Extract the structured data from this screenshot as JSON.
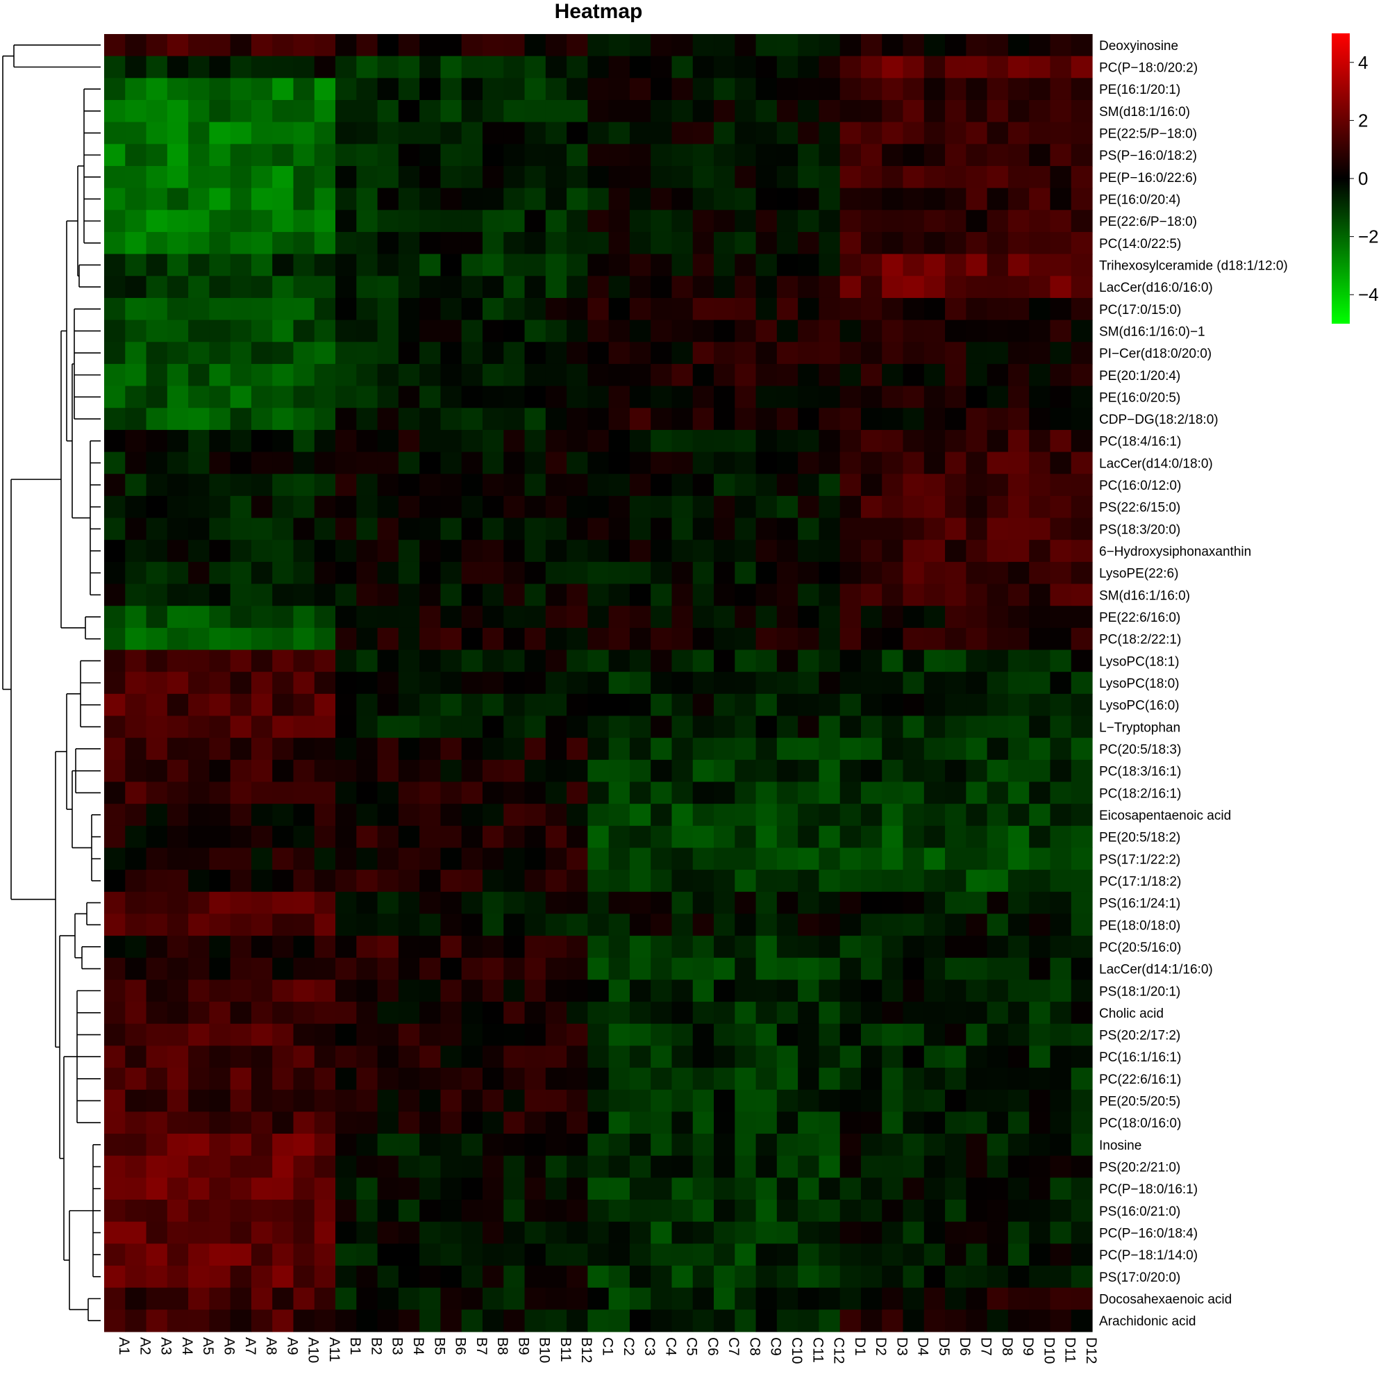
{
  "chart_data": {
    "type": "heatmap",
    "title": "Heatmap",
    "columns": [
      "A1",
      "A2",
      "A3",
      "A4",
      "A5",
      "A6",
      "A7",
      "A8",
      "A9",
      "A10",
      "A11",
      "B1",
      "B2",
      "B3",
      "B4",
      "B5",
      "B6",
      "B7",
      "B8",
      "B9",
      "B10",
      "B11",
      "B12",
      "C1",
      "C2",
      "C3",
      "C4",
      "C5",
      "C6",
      "C7",
      "C8",
      "C9",
      "C10",
      "C11",
      "C12",
      "D1",
      "D2",
      "D3",
      "D4",
      "D5",
      "D6",
      "D7",
      "D8",
      "D9",
      "D10",
      "D11",
      "D12"
    ],
    "rows": [
      "Deoxyinosine",
      "PC(P−18:0/20:2)",
      "PE(16:1/20:1)",
      "SM(d18:1/16:0)",
      "PE(22:5/P−18:0)",
      "PS(P−16:0/18:2)",
      "PE(P−16:0/22:6)",
      "PE(16:0/20:4)",
      "PE(22:6/P−18:0)",
      "PC(14:0/22:5)",
      "Trihexosylceramide (d18:1/12:0)",
      "LacCer(d16:0/16:0)",
      "PC(17:0/15:0)",
      "SM(d16:1/16:0)−1",
      "PI−Cer(d18:0/20:0)",
      "PE(20:1/20:4)",
      "PE(16:0/20:5)",
      "CDP−DG(18:2/18:0)",
      "PC(18:4/16:1)",
      "LacCer(d14:0/18:0)",
      "PC(16:0/12:0)",
      "PS(22:6/15:0)",
      "PS(18:3/20:0)",
      "6−Hydroxysiphonaxanthin",
      "LysoPE(22:6)",
      "SM(d16:1/16:0)",
      "PE(22:6/16:0)",
      "PC(18:2/22:1)",
      "LysoPC(18:1)",
      "LysoPC(18:0)",
      "LysoPC(16:0)",
      "L−Tryptophan",
      "PC(20:5/18:3)",
      "PC(18:3/16:1)",
      "PC(18:2/16:1)",
      "Eicosapentaenoic acid",
      "PE(20:5/18:2)",
      "PS(17:1/22:2)",
      "PC(17:1/18:2)",
      "PS(16:1/24:1)",
      "PE(18:0/18:0)",
      "PC(20:5/16:0)",
      "LacCer(d14:1/16:0)",
      "PS(18:1/20:1)",
      "Cholic acid",
      "PS(20:2/17:2)",
      "PC(16:1/16:1)",
      "PC(22:6/16:1)",
      "PE(20:5/20:5)",
      "PC(18:0/16:0)",
      "Inosine",
      "PS(20:2/21:0)",
      "PC(P−18:0/16:1)",
      "PS(16:0/21:0)",
      "PC(P−16:0/18:4)",
      "PC(P−18:1/14:0)",
      "PS(17:0/20:0)",
      "Docosahexaenoic acid",
      "Arachidonic acid"
    ],
    "color_scale": {
      "low_color": "#00ff00",
      "mid_color": "#000000",
      "high_color": "#ff0000",
      "range": [
        -5,
        5
      ],
      "ticks": [
        "4",
        "2",
        "0",
        "−2",
        "−4"
      ]
    },
    "row_blocks": [
      {
        "row_span": [
          0,
          0
        ],
        "group_values": [
          1.0,
          0.5,
          -0.3,
          0.2
        ]
      },
      {
        "row_span": [
          1,
          1
        ],
        "group_values": [
          -0.5,
          -0.7,
          -0.2,
          1.8
        ]
      },
      {
        "row_span": [
          2,
          9
        ],
        "group_values": [
          -2.2,
          -0.6,
          -0.1,
          0.9
        ]
      },
      {
        "row_span": [
          10,
          11
        ],
        "group_values": [
          -1.0,
          -0.7,
          0.2,
          1.8
        ]
      },
      {
        "row_span": [
          12,
          17
        ],
        "group_values": [
          -1.6,
          -0.4,
          0.5,
          0.4
        ]
      },
      {
        "row_span": [
          18,
          25
        ],
        "group_values": [
          -0.4,
          0.0,
          -0.2,
          1.1
        ]
      },
      {
        "row_span": [
          26,
          27
        ],
        "group_values": [
          -1.6,
          0.4,
          0.2,
          0.4
        ]
      },
      {
        "row_span": [
          28,
          31
        ],
        "group_values": [
          1.4,
          -0.3,
          -0.5,
          -0.7
        ]
      },
      {
        "row_span": [
          32,
          34
        ],
        "group_values": [
          0.9,
          0.4,
          -0.9,
          -0.9
        ]
      },
      {
        "row_span": [
          35,
          38
        ],
        "group_values": [
          0.3,
          0.5,
          -1.1,
          -1.2
        ]
      },
      {
        "row_span": [
          39,
          40
        ],
        "group_values": [
          1.6,
          -0.3,
          -0.3,
          -0.4
        ]
      },
      {
        "row_span": [
          41,
          42
        ],
        "group_values": [
          0.4,
          0.8,
          -1.0,
          -0.5
        ]
      },
      {
        "row_span": [
          43,
          49
        ],
        "group_values": [
          1.2,
          0.4,
          -0.8,
          -0.6
        ]
      },
      {
        "row_span": [
          50,
          56
        ],
        "group_values": [
          1.8,
          -0.3,
          -0.9,
          -0.4
        ]
      },
      {
        "row_span": [
          57,
          58
        ],
        "group_values": [
          1.2,
          -0.3,
          -0.8,
          0.3
        ]
      }
    ],
    "column_groups": [
      {
        "name": "A",
        "columns": [
          0,
          10
        ]
      },
      {
        "name": "B",
        "columns": [
          11,
          22
        ]
      },
      {
        "name": "C",
        "columns": [
          23,
          34
        ]
      },
      {
        "name": "D",
        "columns": [
          35,
          46
        ]
      }
    ],
    "dendrogram": "row clustering dendrogram on left side"
  }
}
